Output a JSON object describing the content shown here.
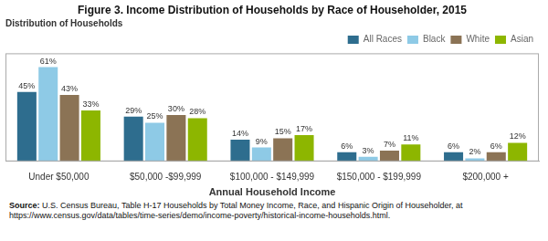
{
  "chart_data": {
    "type": "bar",
    "title": "Figure 3. Income Distribution of Households by Race of Householder, 2015",
    "subtitle": "Distribution of Households",
    "xlabel": "Annual Household Income",
    "categories": [
      "Under $50,000",
      "$50,000 -$99,999",
      "$100,000 - $149,999",
      "$150,000 - $199,999",
      "$200,000 +"
    ],
    "series": [
      {
        "name": "All Races",
        "color": "#2e6d8e",
        "values": [
          45,
          29,
          14,
          6,
          6
        ],
        "value_labels": [
          "45%",
          "29%",
          "14%",
          "6%",
          "6%"
        ]
      },
      {
        "name": "Black",
        "color": "#8ecae6",
        "values": [
          61,
          25,
          9,
          3,
          2
        ],
        "value_labels": [
          "61%",
          "25%",
          "9%",
          "3%",
          "2%"
        ]
      },
      {
        "name": "White",
        "color": "#8b7355",
        "values": [
          43,
          30,
          15,
          7,
          6
        ],
        "value_labels": [
          "43%",
          "30%",
          "15%",
          "7%",
          "6%"
        ]
      },
      {
        "name": "Asian",
        "color": "#8db600",
        "values": [
          33,
          28,
          17,
          11,
          12
        ],
        "value_labels": [
          "33%",
          "28%",
          "17%",
          "11%",
          "12%"
        ]
      }
    ],
    "ylim": [
      0,
      70
    ],
    "grid": false,
    "legend": "upper right",
    "data_labels": true,
    "tick_labels": "x",
    "annotations": [
      "Source:",
      "U.S. Census Bureau, Table H-17 Households by Total Money Income, Race, and Hispanic Origin of Householder, at https://www.census.gov/data/tables/time-series/demo/income-poverty/historical-income-households.html."
    ]
  }
}
